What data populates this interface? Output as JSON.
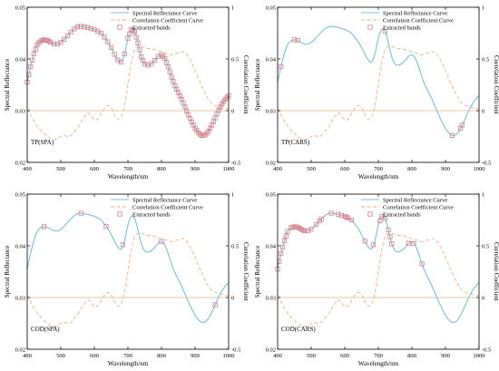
{
  "chart_data": [
    {
      "type": "line",
      "panel_label": "TP(SPA)",
      "xlabel": "Wavelength/nm",
      "ylabel_left": "Spectral Reflectance",
      "ylabel_right": "Correlation Coefficient",
      "xlim": [
        400,
        1000
      ],
      "ylim_left": [
        0.02,
        0.05
      ],
      "ylim_right": [
        -0.5,
        1
      ],
      "x_ticks": [
        "400",
        "500",
        "600",
        "700",
        "800",
        "900",
        "1000"
      ],
      "y_ticks_left": [
        "0.02",
        "0.03",
        "0.04",
        "0.05"
      ],
      "y_ticks_right": [
        "-0.5",
        "0",
        "0.5",
        "1"
      ],
      "grid": false,
      "legend_position": "top-right",
      "legend": [
        "Spectral Reflectance Curve",
        "Correlation Coefficient Curve",
        "Extracted bands"
      ],
      "extracted_bands_nm": [
        400,
        405,
        410,
        415,
        420,
        425,
        430,
        435,
        440,
        445,
        450,
        455,
        460,
        465,
        470,
        480,
        490,
        500,
        510,
        520,
        530,
        540,
        550,
        560,
        570,
        580,
        590,
        600,
        610,
        620,
        630,
        640,
        650,
        660,
        670,
        680,
        690,
        700,
        705,
        710,
        715,
        720,
        725,
        730,
        735,
        740,
        745,
        750,
        760,
        770,
        780,
        790,
        800,
        805,
        810,
        815,
        820,
        825,
        830,
        835,
        840,
        845,
        850,
        855,
        860,
        865,
        870,
        875,
        880,
        885,
        890,
        895,
        900,
        905,
        910,
        915,
        920,
        925,
        930,
        935,
        940,
        945,
        950,
        955,
        960,
        965,
        970,
        975,
        980,
        985,
        990,
        995,
        1000
      ]
    },
    {
      "type": "line",
      "panel_label": "TP(CARS)",
      "xlabel": "Wavelength/nm",
      "ylabel_left": "Spectral Reflectance",
      "ylabel_right": "Correlation Coefficient",
      "xlim": [
        400,
        1000
      ],
      "ylim_left": [
        0.02,
        0.05
      ],
      "ylim_right": [
        -0.5,
        1
      ],
      "x_ticks": [
        "400",
        "500",
        "600",
        "700",
        "800",
        "900",
        "1000"
      ],
      "y_ticks_left": [
        "0.02",
        "0.03",
        "0.04",
        "0.05"
      ],
      "y_ticks_right": [
        "-0.5",
        "0",
        "0.5",
        "1"
      ],
      "grid": false,
      "legend_position": "top-right",
      "legend": [
        "Spectral Reflectance Curve",
        "Correlation Coefficient Curve",
        "Extracted bands"
      ],
      "extracted_bands_nm": [
        410,
        450,
        460,
        720,
        920,
        945,
        950
      ]
    },
    {
      "type": "line",
      "panel_label": "COD(SPA)",
      "xlabel": "Wavelength/nm",
      "ylabel_left": "Spectral Reflectance",
      "ylabel_right": "Correlation Coefficient",
      "xlim": [
        400,
        1000
      ],
      "ylim_left": [
        0.02,
        0.05
      ],
      "ylim_right": [
        -0.5,
        1
      ],
      "x_ticks": [
        "400",
        "500",
        "600",
        "700",
        "800",
        "900",
        "1000"
      ],
      "y_ticks_left": [
        "0.02",
        "0.03",
        "0.04",
        "0.05"
      ],
      "y_ticks_right": [
        "-0.5",
        "0",
        "0.5",
        "1"
      ],
      "grid": false,
      "legend_position": "top-right",
      "legend": [
        "Spectral Reflectance Curve",
        "Correlation Coefficient Curve",
        "Extracted bands"
      ],
      "extracted_bands_nm": [
        450,
        560,
        635,
        685,
        800,
        960
      ]
    },
    {
      "type": "line",
      "panel_label": "COD(CARS)",
      "xlabel": "Wavelength/nm",
      "ylabel_left": "Spectral Reflectance",
      "ylabel_right": "Correlation Coefficient",
      "xlim": [
        400,
        1000
      ],
      "ylim_left": [
        0.02,
        0.05
      ],
      "ylim_right": [
        -0.5,
        1
      ],
      "x_ticks": [
        "400",
        "500",
        "600",
        "700",
        "800",
        "900",
        "1000"
      ],
      "y_ticks_left": [
        "0.02",
        "0.03",
        "0.04",
        "0.05"
      ],
      "y_ticks_right": [
        "-0.5",
        "0",
        "0.5",
        "1"
      ],
      "grid": false,
      "legend_position": "top-right",
      "legend": [
        "Spectral Reflectance Curve",
        "Correlation Coefficient Curve",
        "Extracted bands"
      ],
      "extracted_bands_nm": [
        400,
        405,
        410,
        415,
        420,
        425,
        430,
        440,
        445,
        450,
        455,
        460,
        465,
        470,
        475,
        480,
        490,
        500,
        515,
        525,
        530,
        560,
        580,
        590,
        600,
        605,
        610,
        620,
        660,
        685,
        705,
        710,
        720,
        730,
        735,
        740,
        790,
        805,
        830
      ]
    }
  ],
  "series_shared": {
    "spectral_reflectance_curve": {
      "x": [
        400,
        410,
        420,
        430,
        440,
        450,
        460,
        470,
        480,
        490,
        500,
        510,
        520,
        530,
        540,
        550,
        560,
        570,
        580,
        590,
        600,
        610,
        620,
        630,
        640,
        650,
        660,
        670,
        680,
        690,
        700,
        710,
        720,
        730,
        740,
        750,
        760,
        770,
        780,
        790,
        800,
        810,
        820,
        830,
        840,
        850,
        860,
        870,
        880,
        890,
        900,
        910,
        920,
        930,
        940,
        950,
        960,
        970,
        980,
        990,
        1000
      ],
      "y": [
        0.0355,
        0.0385,
        0.041,
        0.0428,
        0.0435,
        0.0437,
        0.0436,
        0.0432,
        0.0429,
        0.0429,
        0.0432,
        0.0438,
        0.0445,
        0.0452,
        0.0458,
        0.0462,
        0.0463,
        0.0462,
        0.0461,
        0.0459,
        0.0457,
        0.0454,
        0.045,
        0.0442,
        0.0433,
        0.0422,
        0.0409,
        0.0398,
        0.0394,
        0.041,
        0.044,
        0.0457,
        0.0453,
        0.0431,
        0.0404,
        0.039,
        0.0388,
        0.0391,
        0.0397,
        0.0405,
        0.0408,
        0.0401,
        0.0385,
        0.0365,
        0.0348,
        0.0335,
        0.0322,
        0.0307,
        0.0292,
        0.0278,
        0.0266,
        0.0257,
        0.0252,
        0.0253,
        0.026,
        0.0272,
        0.0286,
        0.0301,
        0.0313,
        0.0322,
        0.0329
      ]
    },
    "correlation_coefficient_curve": {
      "x": [
        400,
        410,
        420,
        430,
        440,
        450,
        460,
        470,
        480,
        490,
        500,
        510,
        520,
        530,
        540,
        550,
        560,
        570,
        580,
        590,
        600,
        610,
        620,
        630,
        640,
        650,
        660,
        670,
        680,
        690,
        700,
        710,
        720,
        730,
        740,
        750,
        760,
        770,
        780,
        790,
        800,
        810,
        820,
        830,
        840,
        850,
        860,
        870,
        880,
        890,
        900,
        910,
        920,
        930,
        940,
        950,
        960,
        970,
        980,
        990,
        1000
      ],
      "y": [
        0.02,
        -0.04,
        -0.1,
        -0.15,
        -0.19,
        -0.22,
        -0.25,
        -0.27,
        -0.28,
        -0.27,
        -0.25,
        -0.24,
        -0.25,
        -0.24,
        -0.2,
        -0.17,
        -0.11,
        -0.06,
        -0.02,
        -0.05,
        -0.09,
        -0.08,
        -0.03,
        0.02,
        0.05,
        0.03,
        -0.04,
        -0.08,
        -0.06,
        0.05,
        0.25,
        0.46,
        0.59,
        0.62,
        0.62,
        0.61,
        0.6,
        0.6,
        0.59,
        0.58,
        0.57,
        0.56,
        0.55,
        0.54,
        0.55,
        0.56,
        0.57,
        0.56,
        0.52,
        0.46,
        0.39,
        0.31,
        0.24,
        0.17,
        0.11,
        0.07,
        0.05,
        0.04,
        0.03,
        0.02,
        0.02
      ]
    }
  },
  "colors": {
    "spectral_line": "#7cc0d4",
    "correlation_line": "#e8b48a",
    "marker": "#d9828c",
    "zero_line": "#e0b98a",
    "axes": "#000000"
  }
}
